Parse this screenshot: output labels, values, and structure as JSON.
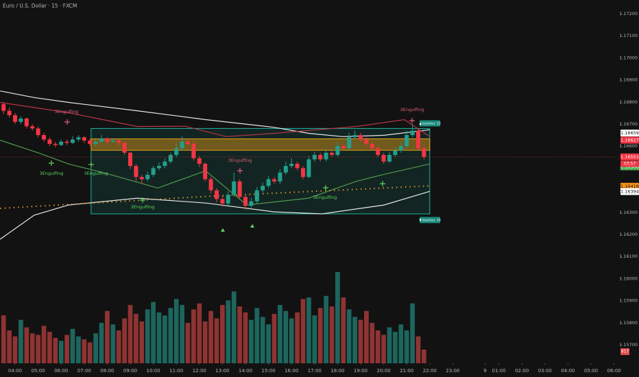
{
  "chart_data": {
    "type": "candlestick",
    "title": "Euro / U.S. Dollar · 15 · FXCM",
    "x": [
      3.5,
      3.75,
      4,
      4.25,
      4.5,
      4.75,
      5,
      5.25,
      5.5,
      5.75,
      6,
      6.25,
      6.5,
      6.75,
      7,
      7.25,
      7.5,
      7.75,
      8,
      8.25,
      8.5,
      8.75,
      9,
      9.25,
      9.5,
      9.75,
      10,
      10.25,
      10.5,
      10.75,
      11,
      11.25,
      11.5,
      11.75,
      12,
      12.25,
      12.5,
      12.75,
      13,
      13.25,
      13.5,
      13.75,
      14,
      14.25,
      14.5,
      14.75,
      15,
      15.25,
      15.5,
      15.75,
      16,
      16.25,
      16.5,
      16.75,
      17,
      17.25,
      17.5,
      17.75,
      18,
      18.25,
      18.5,
      18.75,
      19,
      19.25,
      19.5,
      19.75,
      20,
      20.25,
      20.5,
      20.75,
      21,
      21.25,
      21.5,
      21.75
    ],
    "open": [
      1.1679,
      1.1676,
      1.1674,
      1.1671,
      1.16725,
      1.1669,
      1.1668,
      1.1665,
      1.1663,
      1.1661,
      1.16605,
      1.1662,
      1.16615,
      1.1663,
      1.1664,
      1.16625,
      1.1661,
      1.1662,
      1.16635,
      1.1662,
      1.16625,
      1.16615,
      1.1657,
      1.1651,
      1.1646,
      1.1645,
      1.1647,
      1.165,
      1.1651,
      1.1653,
      1.1656,
      1.1659,
      1.1662,
      1.1661,
      1.16545,
      1.1652,
      1.1645,
      1.164,
      1.1636,
      1.1634,
      1.1638,
      1.1644,
      1.1637,
      1.1633,
      1.1635,
      1.164,
      1.1642,
      1.1645,
      1.1644,
      1.1648,
      1.1651,
      1.1652,
      1.165,
      1.1646,
      1.1654,
      1.1656,
      1.1654,
      1.1657,
      1.1656,
      1.166,
      1.1659,
      1.1664,
      1.1665,
      1.1663,
      1.1661,
      1.1659,
      1.1656,
      1.1653,
      1.1656,
      1.1658,
      1.166,
      1.1665,
      1.1667,
      1.1659
    ],
    "high": [
      1.168,
      1.16775,
      1.1675,
      1.16735,
      1.1673,
      1.167,
      1.1669,
      1.1666,
      1.1664,
      1.1662,
      1.1663,
      1.1663,
      1.16645,
      1.1665,
      1.16645,
      1.16635,
      1.1663,
      1.1665,
      1.1664,
      1.16635,
      1.1663,
      1.1662,
      1.16575,
      1.1652,
      1.1647,
      1.16485,
      1.1651,
      1.16525,
      1.16545,
      1.1657,
      1.16615,
      1.16645,
      1.1663,
      1.1662,
      1.16555,
      1.16525,
      1.1646,
      1.1641,
      1.16375,
      1.16395,
      1.1648,
      1.1645,
      1.1638,
      1.16365,
      1.16415,
      1.16435,
      1.16465,
      1.1646,
      1.16495,
      1.1653,
      1.16545,
      1.1653,
      1.1651,
      1.16555,
      1.16575,
      1.1657,
      1.16585,
      1.1658,
      1.16615,
      1.1661,
      1.1666,
      1.1667,
      1.1666,
      1.1664,
      1.1662,
      1.166,
      1.1657,
      1.16575,
      1.16595,
      1.1662,
      1.1667,
      1.167,
      1.1668,
      1.166
    ],
    "low": [
      1.16745,
      1.1673,
      1.167,
      1.167,
      1.1668,
      1.1667,
      1.1664,
      1.1662,
      1.166,
      1.16595,
      1.166,
      1.16605,
      1.1661,
      1.1662,
      1.16615,
      1.166,
      1.166,
      1.16615,
      1.1661,
      1.16615,
      1.166,
      1.1656,
      1.16495,
      1.1644,
      1.1643,
      1.1644,
      1.1646,
      1.1649,
      1.165,
      1.1652,
      1.1655,
      1.1658,
      1.166,
      1.16535,
      1.16505,
      1.1644,
      1.16385,
      1.16345,
      1.16325,
      1.1633,
      1.1637,
      1.1636,
      1.1631,
      1.1632,
      1.1634,
      1.1639,
      1.1641,
      1.1643,
      1.1643,
      1.1647,
      1.165,
      1.1649,
      1.1645,
      1.16455,
      1.1653,
      1.1653,
      1.1653,
      1.1655,
      1.1655,
      1.1658,
      1.16585,
      1.1663,
      1.1662,
      1.166,
      1.1658,
      1.1655,
      1.1652,
      1.16525,
      1.1655,
      1.1657,
      1.1659,
      1.1664,
      1.1658,
      1.1654
    ],
    "close": [
      1.1676,
      1.1674,
      1.1671,
      1.16725,
      1.1669,
      1.1668,
      1.1665,
      1.1663,
      1.1661,
      1.16605,
      1.1662,
      1.16615,
      1.1663,
      1.1664,
      1.16625,
      1.1661,
      1.1662,
      1.16635,
      1.1662,
      1.16625,
      1.16615,
      1.1657,
      1.1651,
      1.1646,
      1.1645,
      1.1647,
      1.165,
      1.1651,
      1.1653,
      1.1656,
      1.1659,
      1.1662,
      1.1661,
      1.16545,
      1.1652,
      1.1645,
      1.164,
      1.1636,
      1.1634,
      1.1638,
      1.1644,
      1.1637,
      1.1633,
      1.1635,
      1.164,
      1.1642,
      1.1645,
      1.1644,
      1.1648,
      1.1651,
      1.1652,
      1.165,
      1.1646,
      1.1654,
      1.1656,
      1.1654,
      1.1657,
      1.1656,
      1.166,
      1.1659,
      1.1664,
      1.1665,
      1.1663,
      1.1661,
      1.1659,
      1.1656,
      1.1653,
      1.1656,
      1.1658,
      1.166,
      1.1665,
      1.1667,
      1.1659,
      1.16551
    ],
    "volume": [
      3200,
      2200,
      1800,
      2900,
      2400,
      2000,
      1900,
      2500,
      2100,
      1700,
      1500,
      1900,
      2300,
      1800,
      1600,
      1400,
      2000,
      2700,
      3500,
      2600,
      2200,
      3000,
      3900,
      3300,
      2800,
      3600,
      4100,
      3400,
      3200,
      3700,
      4300,
      3900,
      2700,
      3600,
      4000,
      2800,
      3500,
      3000,
      3900,
      4200,
      4800,
      3800,
      3400,
      2900,
      3700,
      3100,
      2600,
      3300,
      3900,
      3500,
      3000,
      3400,
      4300,
      4400,
      3200,
      3700,
      4500,
      3800,
      6100,
      4400,
      3600,
      3100,
      2900,
      3500,
      2700,
      2200,
      1900,
      2400,
      2100,
      2600,
      2200,
      4000,
      1800,
      917
    ],
    "up_color": "#22a08c",
    "down_color": "#f23645",
    "volume_up_color": "#1d665e",
    "volume_down_color": "#8e3432",
    "xlim": [
      3.345,
      30.28
    ],
    "ylim": [
      1.15616,
      1.17262
    ],
    "vlim": [
      0,
      12000
    ],
    "xticks": [
      {
        "value": 4,
        "label": "04:00"
      },
      {
        "value": 5,
        "label": "05:00"
      },
      {
        "value": 6,
        "label": "06:00"
      },
      {
        "value": 7,
        "label": "07:00"
      },
      {
        "value": 8,
        "label": "08:00"
      },
      {
        "value": 9,
        "label": "09:00"
      },
      {
        "value": 10,
        "label": "10:00"
      },
      {
        "value": 11,
        "label": "11:00"
      },
      {
        "value": 12,
        "label": "12:00"
      },
      {
        "value": 13,
        "label": "13:00"
      },
      {
        "value": 14,
        "label": "14:00"
      },
      {
        "value": 15,
        "label": "15:00"
      },
      {
        "value": 16,
        "label": "16:00"
      },
      {
        "value": 17,
        "label": "17:00"
      },
      {
        "value": 18,
        "label": "18:00"
      },
      {
        "value": 19,
        "label": "19:00"
      },
      {
        "value": 20,
        "label": "20:00"
      },
      {
        "value": 21,
        "label": "21:00"
      },
      {
        "value": 22,
        "label": "22:00"
      },
      {
        "value": 23,
        "label": "23:00"
      },
      {
        "value": 24.4,
        "label": "9"
      },
      {
        "value": 25,
        "label": "01:00"
      },
      {
        "value": 26,
        "label": "02:00"
      },
      {
        "value": 27,
        "label": "03:00"
      },
      {
        "value": 28,
        "label": "04:00"
      },
      {
        "value": 29,
        "label": "05:00"
      },
      {
        "value": 30,
        "label": "06:00"
      }
    ],
    "yticks": [
      {
        "value": 1.172,
        "label": "1.17200"
      },
      {
        "value": 1.171,
        "label": "1.17100"
      },
      {
        "value": 1.17,
        "label": "1.17000"
      },
      {
        "value": 1.169,
        "label": "1.16900"
      },
      {
        "value": 1.168,
        "label": "1.16800"
      },
      {
        "value": 1.167,
        "label": "1.16700"
      },
      {
        "value": 1.166,
        "label": "1.16600"
      },
      {
        "value": 1.165,
        "label": "1.16500"
      },
      {
        "value": 1.164,
        "label": "1.16400"
      },
      {
        "value": 1.163,
        "label": "1.16300"
      },
      {
        "value": 1.162,
        "label": "1.16200"
      },
      {
        "value": 1.161,
        "label": "1.16100"
      },
      {
        "value": 1.16,
        "label": "1.16000"
      },
      {
        "value": 1.159,
        "label": "1.15900"
      },
      {
        "value": 1.158,
        "label": "1.15800"
      },
      {
        "value": 1.157,
        "label": "1.15700"
      }
    ],
    "grid": false,
    "lines": [
      {
        "color": "#e8e8e8",
        "dashed": false,
        "x": [
          3.35,
          4.83,
          6.32,
          9.3,
          12.27,
          15.25,
          16.74,
          18.23,
          20.01,
          22.0
        ],
        "values": [
          1.1685,
          1.1682,
          1.16798,
          1.1676,
          1.1672,
          1.16685,
          1.16658,
          1.16643,
          1.16649,
          1.16674
        ]
      },
      {
        "color": "#e8e8e8",
        "dashed": false,
        "x": [
          3.35,
          4.83,
          6.32,
          9.3,
          12.27,
          15.25,
          17.33,
          20.01,
          22.0
        ],
        "values": [
          1.16178,
          1.16287,
          1.16333,
          1.16364,
          1.16342,
          1.16302,
          1.16293,
          1.16333,
          1.16395
        ]
      },
      {
        "color": "#b8364a",
        "dashed": false,
        "x": [
          3.35,
          6.32,
          9.3,
          11.38,
          13.17,
          15.25,
          18.82,
          20.9,
          22.0
        ],
        "values": [
          1.16798,
          1.16751,
          1.16689,
          1.1669,
          1.16643,
          1.16658,
          1.16689,
          1.1672,
          1.16643
        ]
      },
      {
        "color": "#4f9a4f",
        "dashed": false,
        "x": [
          3.35,
          5.13,
          6.32,
          8.11,
          10.19,
          12.27,
          14.06,
          16.74,
          18.82,
          20.01,
          22.0
        ],
        "values": [
          1.16627,
          1.16565,
          1.16519,
          1.16472,
          1.1641,
          1.16488,
          1.16333,
          1.16364,
          1.16441,
          1.16472,
          1.16519
        ]
      },
      {
        "color": "#d49a2a",
        "dashed": true,
        "x": [
          3.35,
          12.27,
          22.0
        ],
        "values": [
          1.16318,
          1.16372,
          1.1642
        ]
      }
    ],
    "zones": [
      {
        "color": "#1fb5a0",
        "xlim": [
          7.3,
          22.0
        ],
        "ylim": [
          1.16293,
          1.1668
        ]
      },
      {
        "color": "#e39b18",
        "xlim": [
          7.3,
          22.0
        ],
        "ylim": [
          1.16581,
          1.16633
        ]
      }
    ],
    "price_labels": [
      {
        "value": 1.16627,
        "color": "#f23645",
        "text_color": "#ffffff"
      },
      {
        "value": 1.16659,
        "color": "#ffffff",
        "text_color": "#131313"
      },
      {
        "value": 1.16551,
        "color": "#f23645",
        "text_color": "#ffffff"
      },
      {
        "value": 1.16506,
        "color": "#4caf50",
        "text_color": "#ffffff"
      },
      {
        "value": 1.16418,
        "color": "#f7931a",
        "text_color": "#131313"
      },
      {
        "value": 1.16394,
        "color": "#ffffff",
        "text_color": "#131313"
      }
    ],
    "countdown": "03:57",
    "volume_label": "917",
    "annotations": [
      {
        "text": "3Engulfing",
        "color": "#e0607a"
      },
      {
        "text": "3Engulfing",
        "color": "#5cd65c"
      },
      {
        "text": "3Engulfing",
        "color": "#5cd65c"
      },
      {
        "text": "3Engulfing",
        "color": "#5cd65c"
      },
      {
        "text": "3Engulfing",
        "color": "#e0607a"
      },
      {
        "text": "3Engulfing",
        "color": "#5cd65c"
      },
      {
        "text": "3Engulfing",
        "color": "#e0607a"
      }
    ],
    "touch_tags": [
      "▲ touches: 13",
      "▼ touches: 10"
    ]
  }
}
